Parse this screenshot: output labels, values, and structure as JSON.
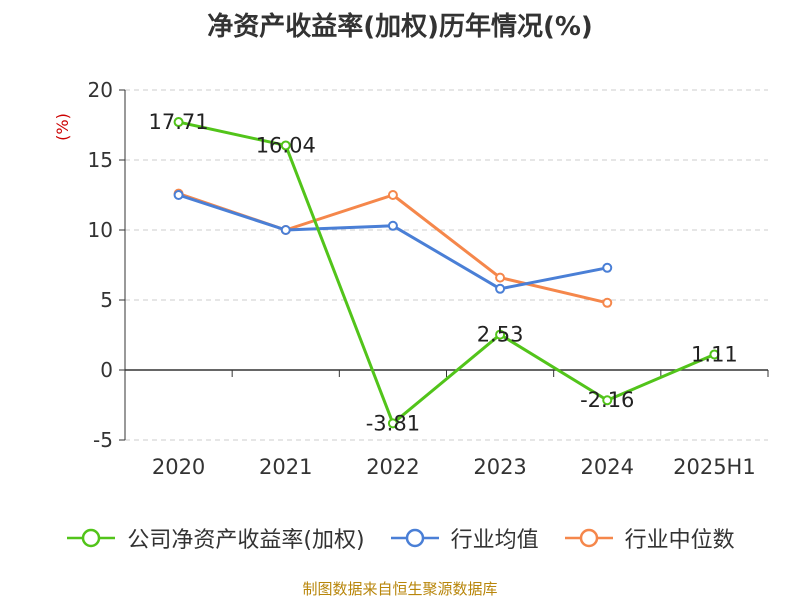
{
  "chart_data": {
    "type": "line",
    "title": "净资产收益率(加权)历年情况(%)",
    "ylabel": "(%)",
    "categories": [
      "2020",
      "2021",
      "2022",
      "2023",
      "2024",
      "2025H1"
    ],
    "ylim": [
      -5,
      20
    ],
    "yticks": [
      20,
      15,
      10,
      5,
      0,
      -5
    ],
    "grid": true,
    "legend_position": "bottom",
    "series": [
      {
        "name": "公司净资产收益率(加权)",
        "color": "#52c41a",
        "values": [
          17.71,
          16.04,
          -3.81,
          2.53,
          -2.16,
          1.11
        ],
        "labels": [
          "17.71",
          "16.04",
          "-3.81",
          "2.53",
          "-2.16",
          "1.11"
        ]
      },
      {
        "name": "行业均值",
        "color": "#4a7fd6",
        "values": [
          12.5,
          10.0,
          10.3,
          5.8,
          7.3,
          null
        ]
      },
      {
        "name": "行业中位数",
        "color": "#f5874b",
        "values": [
          12.6,
          10.0,
          12.5,
          6.6,
          4.8,
          null
        ]
      }
    ]
  },
  "source": "制图数据来自恒生聚源数据库"
}
